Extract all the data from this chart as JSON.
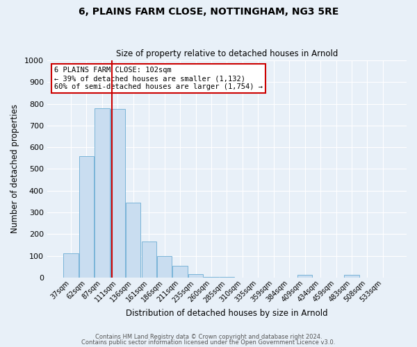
{
  "title": "6, PLAINS FARM CLOSE, NOTTINGHAM, NG3 5RE",
  "subtitle": "Size of property relative to detached houses in Arnold",
  "xlabel": "Distribution of detached houses by size in Arnold",
  "ylabel": "Number of detached properties",
  "bar_labels": [
    "37sqm",
    "62sqm",
    "87sqm",
    "111sqm",
    "136sqm",
    "161sqm",
    "186sqm",
    "211sqm",
    "235sqm",
    "260sqm",
    "285sqm",
    "310sqm",
    "335sqm",
    "359sqm",
    "384sqm",
    "409sqm",
    "434sqm",
    "459sqm",
    "483sqm",
    "508sqm",
    "533sqm"
  ],
  "bar_values": [
    113,
    560,
    780,
    775,
    345,
    165,
    98,
    55,
    14,
    3,
    3,
    0,
    0,
    0,
    0,
    13,
    0,
    0,
    13,
    0,
    0
  ],
  "bar_color": "#c9ddf0",
  "bar_edge_color": "#7ab4d8",
  "background_color": "#e8f0f8",
  "grid_color": "#ffffff",
  "ylim": [
    0,
    1000
  ],
  "yticks": [
    0,
    100,
    200,
    300,
    400,
    500,
    600,
    700,
    800,
    900,
    1000
  ],
  "vline_x": 102,
  "vline_color": "#cc0000",
  "annotation_text": "6 PLAINS FARM CLOSE: 102sqm\n← 39% of detached houses are smaller (1,132)\n60% of semi-detached houses are larger (1,754) →",
  "annotation_box_color": "#ffffff",
  "annotation_border_color": "#cc0000",
  "footer_line1": "Contains HM Land Registry data © Crown copyright and database right 2024.",
  "footer_line2": "Contains public sector information licensed under the Open Government Licence v3.0.",
  "bin_width": 25
}
